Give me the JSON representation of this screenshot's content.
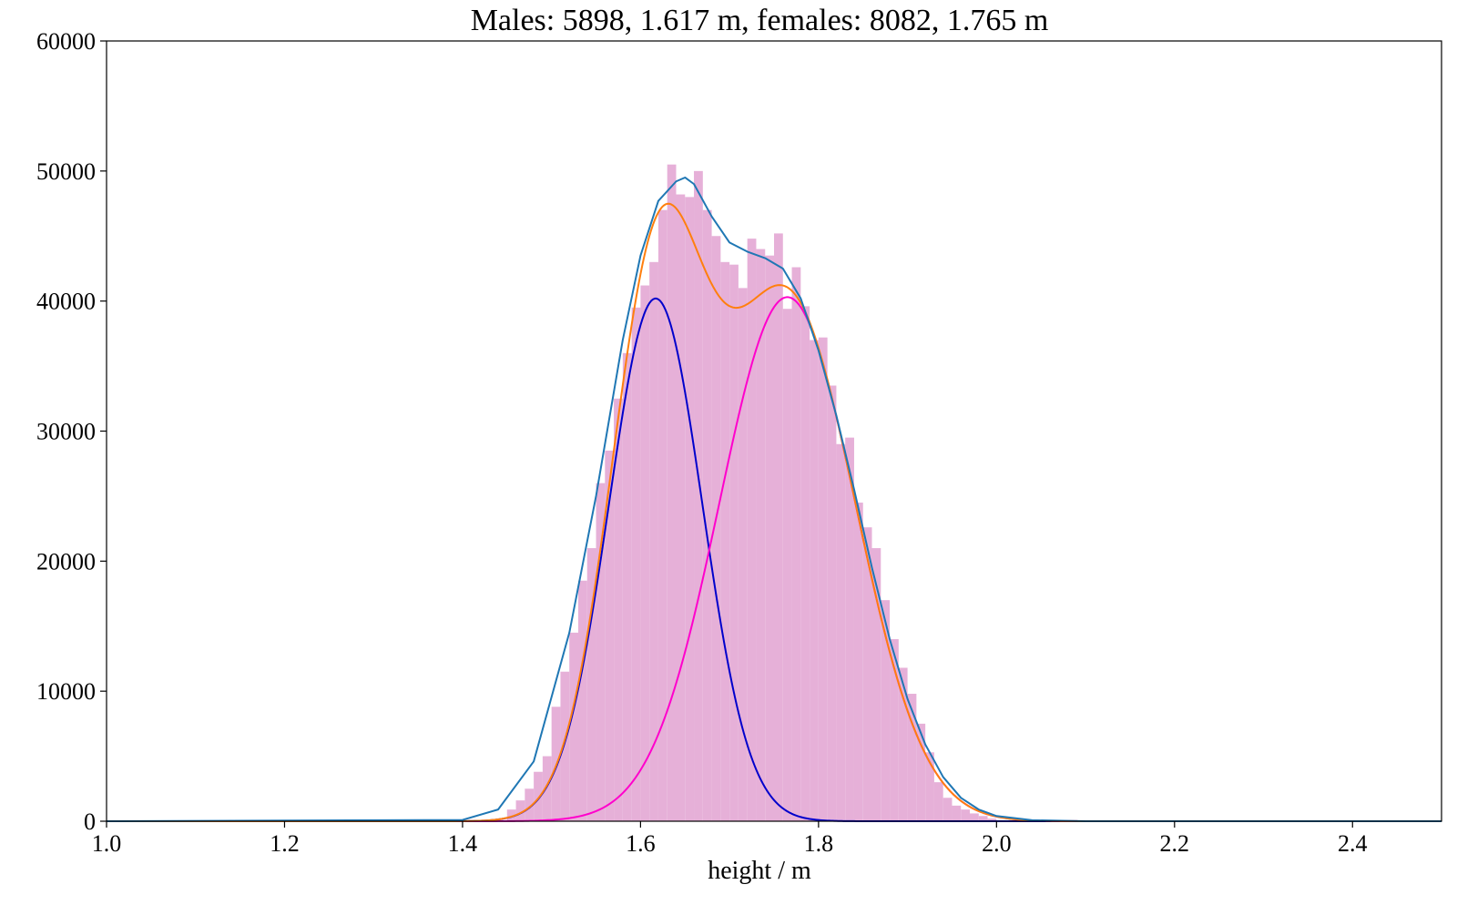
{
  "chart_data": {
    "type": "histogram",
    "title": "Males: 5898, 1.617 m, females: 8082, 1.765 m",
    "xlabel": "height / m",
    "ylabel": "",
    "xlim": [
      1.0,
      2.5
    ],
    "ylim": [
      0,
      60000
    ],
    "grid": false,
    "x_ticks": [
      "1.0",
      "1.2",
      "1.4",
      "1.6",
      "1.8",
      "2.0",
      "2.2",
      "2.4"
    ],
    "y_ticks": [
      "0",
      "10000",
      "20000",
      "30000",
      "40000",
      "50000",
      "60000"
    ],
    "histogram": {
      "color": "#e6b0d8",
      "bin_start": 1.45,
      "bin_width": 0.01,
      "values": [
        900,
        1600,
        2500,
        3800,
        5000,
        8800,
        11500,
        14500,
        18500,
        21000,
        26000,
        28500,
        32500,
        36000,
        39500,
        41200,
        43000,
        47000,
        50500,
        48200,
        48000,
        50000,
        47000,
        45000,
        43000,
        42800,
        41000,
        44800,
        44000,
        43500,
        45200,
        39400,
        42600,
        39600,
        37000,
        37200,
        33500,
        29000,
        29500,
        24500,
        22600,
        21000,
        17000,
        14000,
        11800,
        9800,
        7500,
        5300,
        3000,
        1800,
        1200,
        900,
        600,
        400,
        200
      ]
    },
    "series": [
      {
        "color": "#0000cc",
        "type": "gaussian",
        "mean": 1.617,
        "sd": 0.0525,
        "peak": 40200
      },
      {
        "color": "#ff00cc",
        "type": "gaussian",
        "mean": 1.765,
        "sd": 0.0765,
        "peak": 40300
      },
      {
        "color": "#ff7f0e",
        "type": "gaussian-mix",
        "components": [
          [
            1.617,
            0.0525,
            40200
          ],
          [
            1.765,
            0.0765,
            40300
          ]
        ]
      },
      {
        "color": "#1f77b4",
        "type": "curve",
        "x": [
          1.4,
          1.44,
          1.48,
          1.52,
          1.55,
          1.58,
          1.6,
          1.62,
          1.64,
          1.65,
          1.66,
          1.68,
          1.7,
          1.72,
          1.74,
          1.76,
          1.78,
          1.8,
          1.82,
          1.84,
          1.86,
          1.88,
          1.9,
          1.92,
          1.94,
          1.96,
          1.98,
          2.0,
          2.04,
          2.1
        ],
        "y": [
          100,
          900,
          4600,
          14500,
          25000,
          37000,
          43500,
          47700,
          49200,
          49500,
          49000,
          46500,
          44500,
          43800,
          43300,
          42500,
          40200,
          36200,
          31200,
          25500,
          19500,
          14000,
          9400,
          5900,
          3400,
          1800,
          900,
          400,
          80,
          0
        ]
      }
    ]
  }
}
